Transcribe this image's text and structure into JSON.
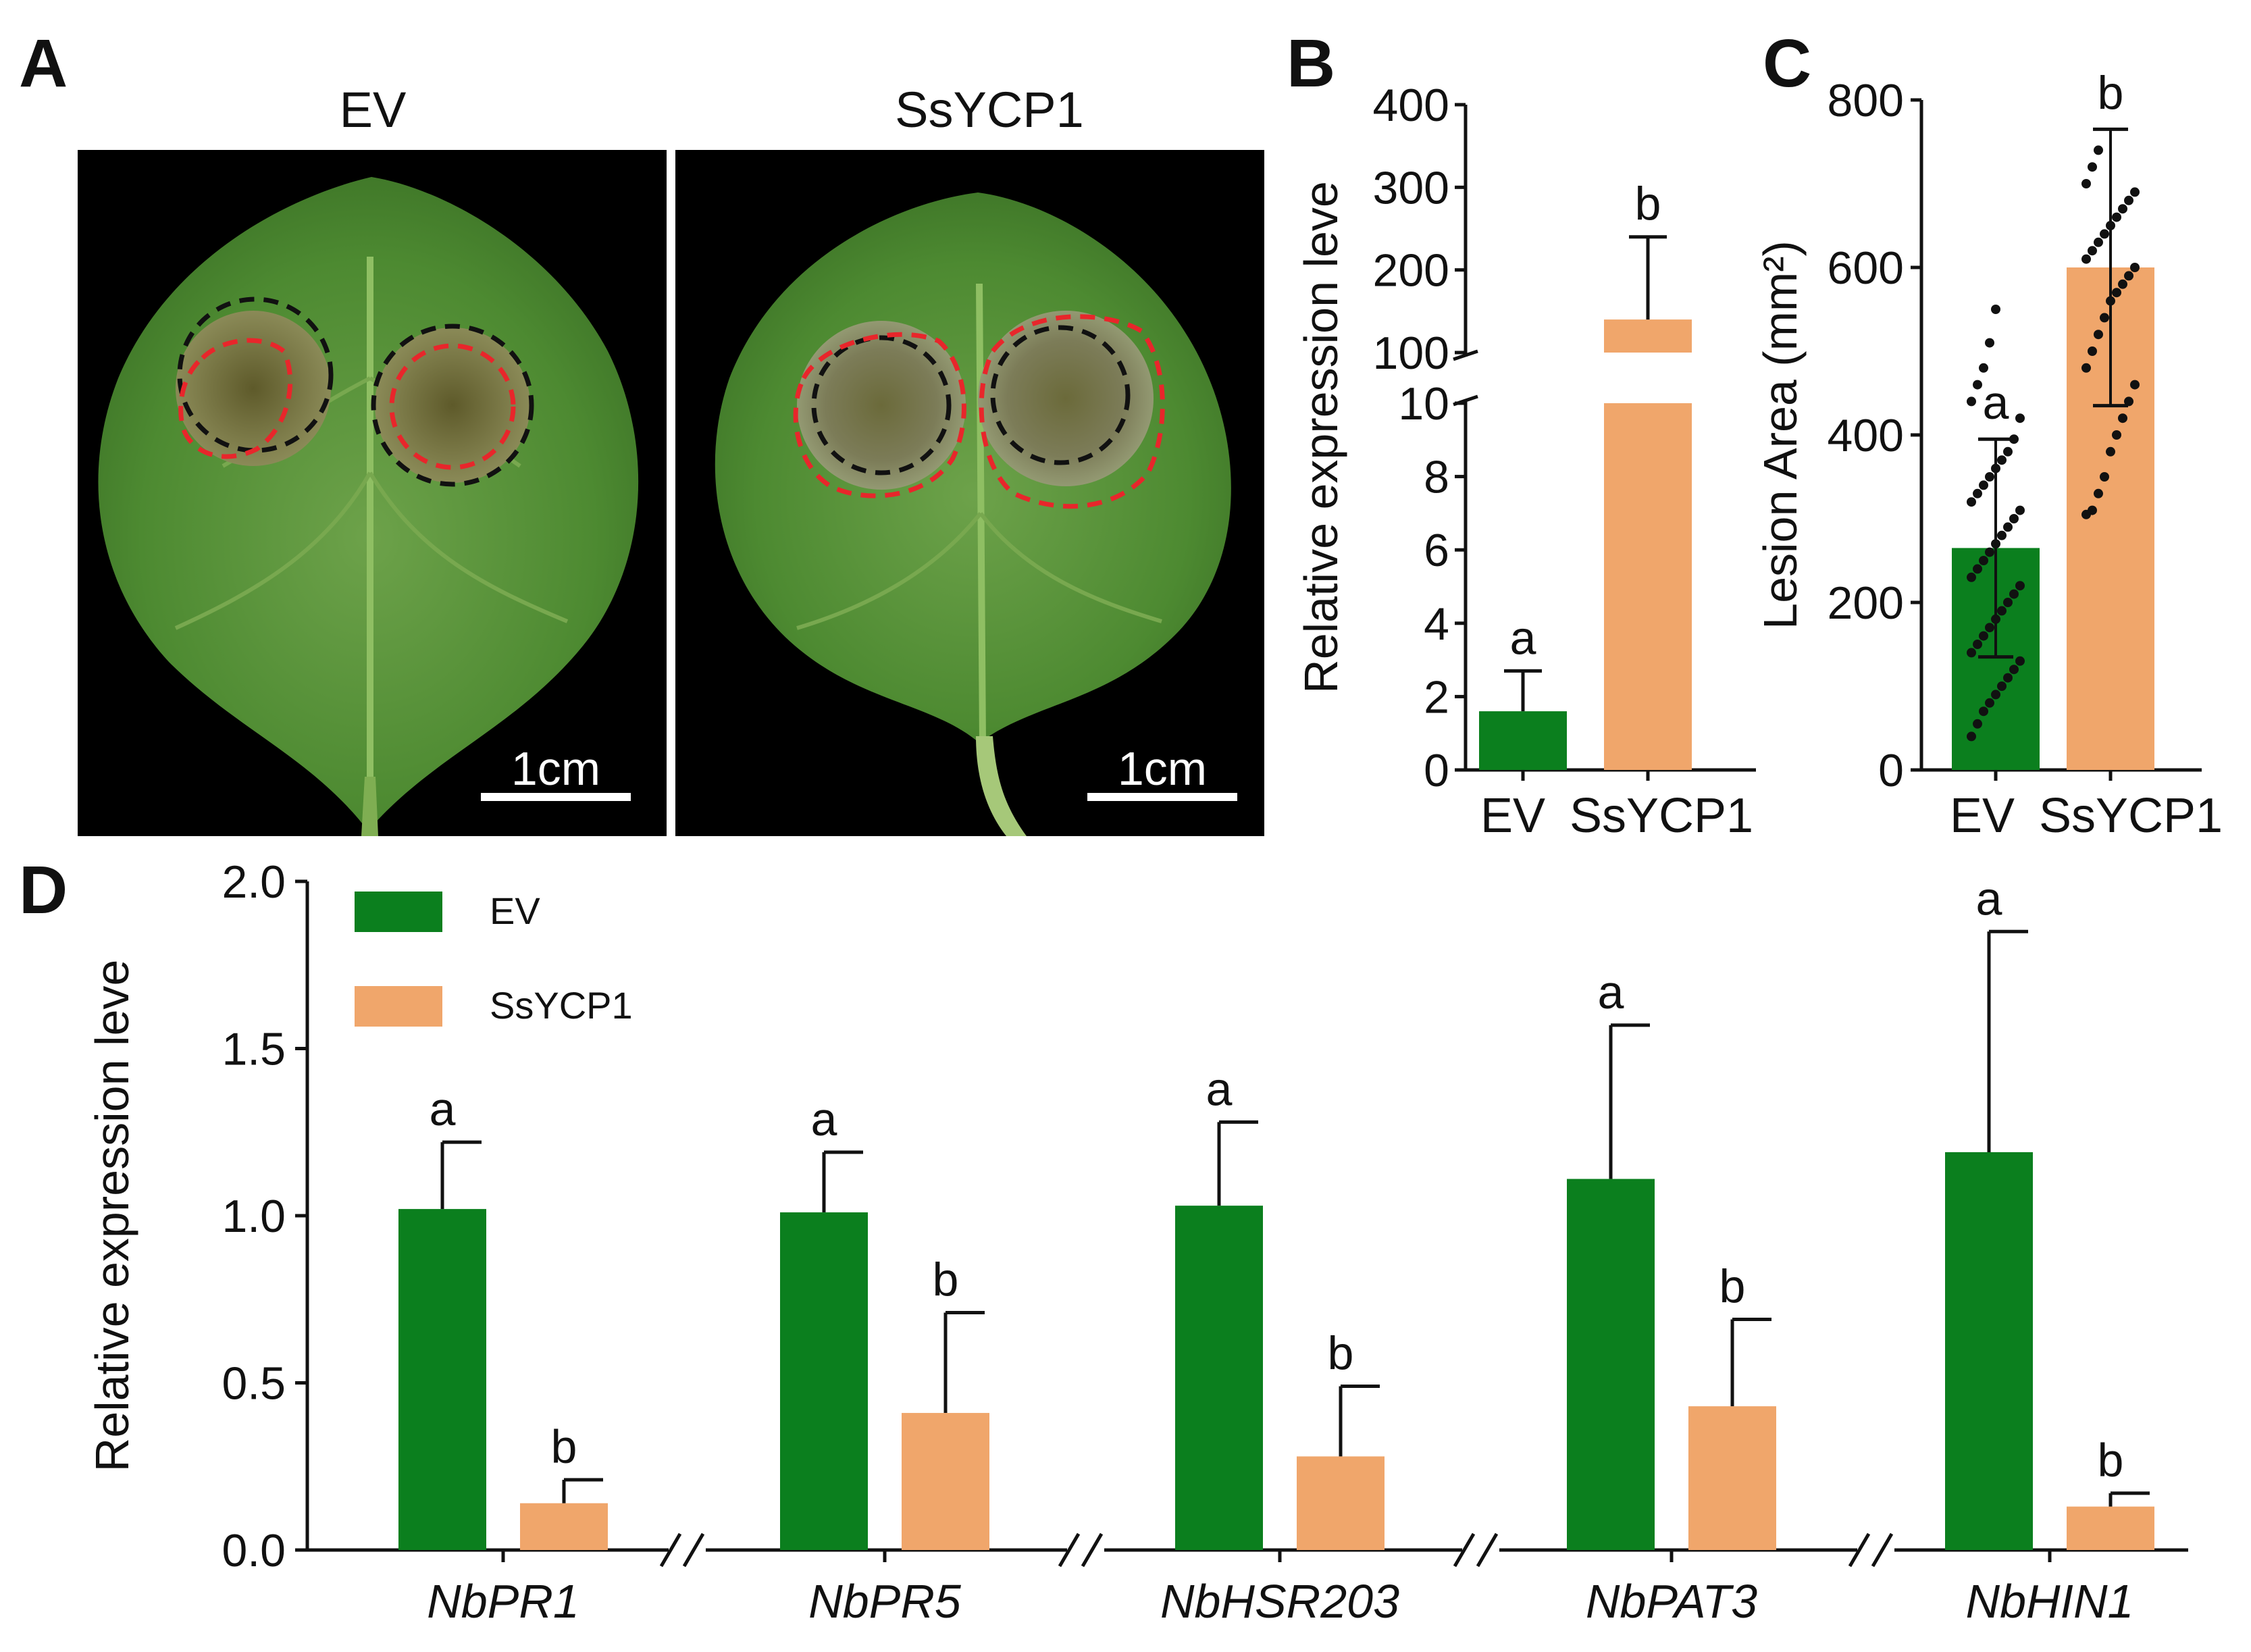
{
  "panels": {
    "A": {
      "label": "A",
      "titles": [
        "EV",
        "SsYCP1"
      ],
      "scale_bar": "1cm"
    },
    "B": {
      "label": "B"
    },
    "C": {
      "label": "C"
    },
    "D": {
      "label": "D"
    }
  },
  "colors": {
    "EV": "#0b7f1e",
    "SsYCP1": "#f0a66b",
    "leaf": "#4f8a34",
    "background": "#000000",
    "lesion_outline_red": "#e8262b",
    "lesion_outline_black": "#111111"
  },
  "chart_data": [
    {
      "panel": "B",
      "type": "bar",
      "categories": [
        "EV",
        "SsYCP1"
      ],
      "values": [
        1.6,
        140
      ],
      "errors": [
        1.1,
        100
      ],
      "significance": [
        "a",
        "b"
      ],
      "ylabel": "Relative expression leve",
      "ylim": [
        0,
        400
      ],
      "axis_break": [
        10,
        100
      ],
      "yticks_lower": [
        "0",
        "2",
        "4",
        "6",
        "8",
        "10"
      ],
      "yticks_upper": [
        "100",
        "200",
        "300",
        "400"
      ]
    },
    {
      "panel": "C",
      "type": "bar",
      "categories": [
        "EV",
        "SsYCP1"
      ],
      "values": [
        265,
        600
      ],
      "errors": [
        130,
        165
      ],
      "significance": [
        "a",
        "b"
      ],
      "ylabel": "Lesion Area (mm²)",
      "ylim": [
        0,
        800
      ],
      "yticks": [
        "0",
        "200",
        "400",
        "600",
        "800"
      ],
      "points": {
        "EV": [
          40,
          55,
          70,
          80,
          90,
          100,
          110,
          120,
          130,
          140,
          150,
          160,
          170,
          180,
          190,
          200,
          210,
          220,
          230,
          240,
          250,
          260,
          270,
          280,
          290,
          300,
          310,
          320,
          330,
          340,
          350,
          360,
          370,
          380,
          395,
          420,
          440,
          460,
          480,
          510,
          550
        ],
        "SsYCP1": [
          305,
          310,
          330,
          350,
          380,
          400,
          420,
          440,
          460,
          480,
          500,
          520,
          540,
          560,
          570,
          580,
          590,
          600,
          610,
          620,
          630,
          640,
          650,
          660,
          670,
          680,
          690,
          700,
          720,
          740
        ]
      }
    },
    {
      "panel": "D",
      "type": "bar",
      "categories": [
        "NbPR1",
        "NbPR5",
        "NbHSR203",
        "NbPAT3",
        "NbHIN1"
      ],
      "series": [
        {
          "name": "EV",
          "values": [
            1.02,
            1.01,
            1.03,
            1.11,
            1.19
          ],
          "errors": [
            0.2,
            0.18,
            0.25,
            0.46,
            0.66
          ],
          "significance": [
            "a",
            "a",
            "a",
            "a",
            "a"
          ]
        },
        {
          "name": "SsYCP1",
          "values": [
            0.14,
            0.41,
            0.28,
            0.43,
            0.13
          ],
          "errors": [
            0.07,
            0.3,
            0.21,
            0.26,
            0.04
          ],
          "significance": [
            "b",
            "b",
            "b",
            "b",
            "b"
          ]
        }
      ],
      "ylabel": "Relative expression leve",
      "ylim": [
        0,
        2.0
      ],
      "yticks": [
        "0.0",
        "0.5",
        "1.0",
        "1.5",
        "2.0"
      ],
      "legend": "top-left"
    }
  ]
}
